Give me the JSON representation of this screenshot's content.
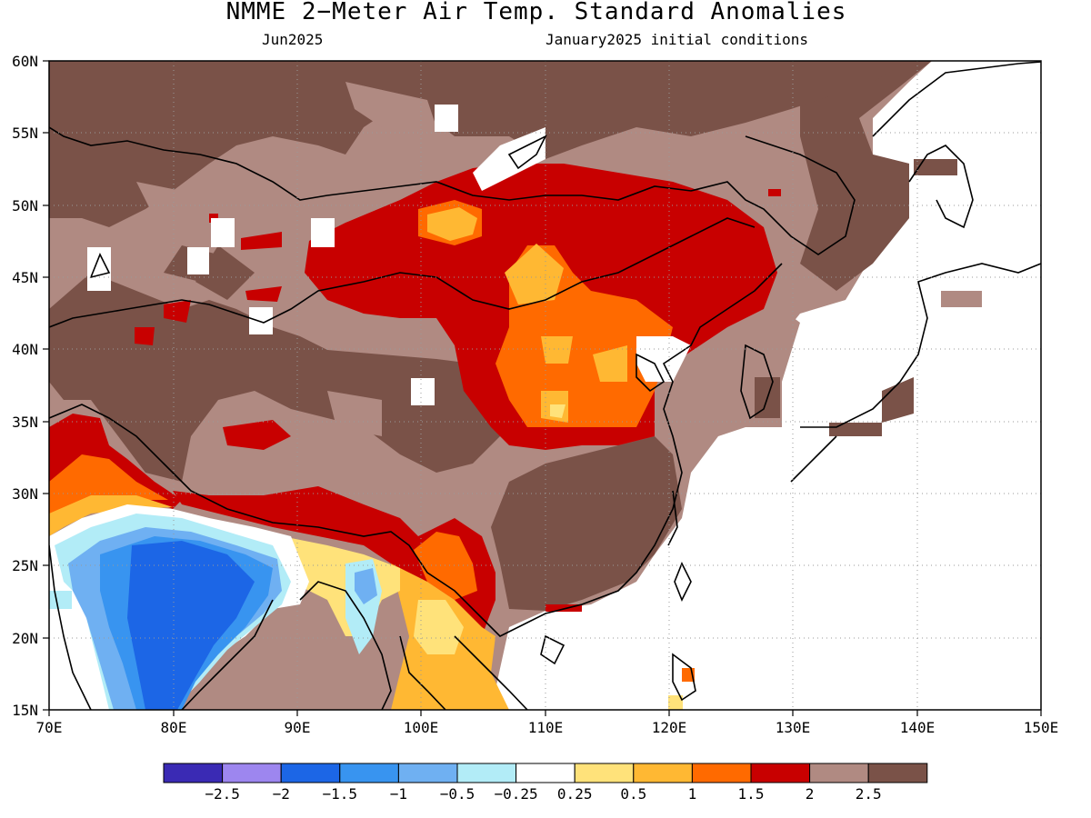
{
  "title": "NMME 2−Meter Air Temp. Standard Anomalies",
  "subtitle_left": "Jun2025",
  "subtitle_right": "January2025 initial conditions",
  "lat_labels": [
    "60N",
    "55N",
    "50N",
    "45N",
    "40N",
    "35N",
    "30N",
    "25N",
    "20N",
    "15N"
  ],
  "lon_labels": [
    "70E",
    "80E",
    "90E",
    "100E",
    "110E",
    "120E",
    "130E",
    "140E",
    "150E"
  ],
  "colorbar": {
    "colors": [
      "#3a2ab4",
      "#9d86ef",
      "#1c66e6",
      "#3894f0",
      "#6fb0f2",
      "#b2ecf7",
      "#ffffff",
      "#ffe27a",
      "#ffb833",
      "#ff6a00",
      "#c80000",
      "#b08a82",
      "#7a5248"
    ],
    "tick_labels": [
      "−2.5",
      "−2",
      "−1.5",
      "−1",
      "−0.5",
      "−0.25",
      "0.25",
      "0.5",
      "1",
      "1.5",
      "2",
      "2.5"
    ]
  },
  "map": {
    "lon_range": [
      70,
      150
    ],
    "lat_range": [
      15,
      60
    ]
  }
}
